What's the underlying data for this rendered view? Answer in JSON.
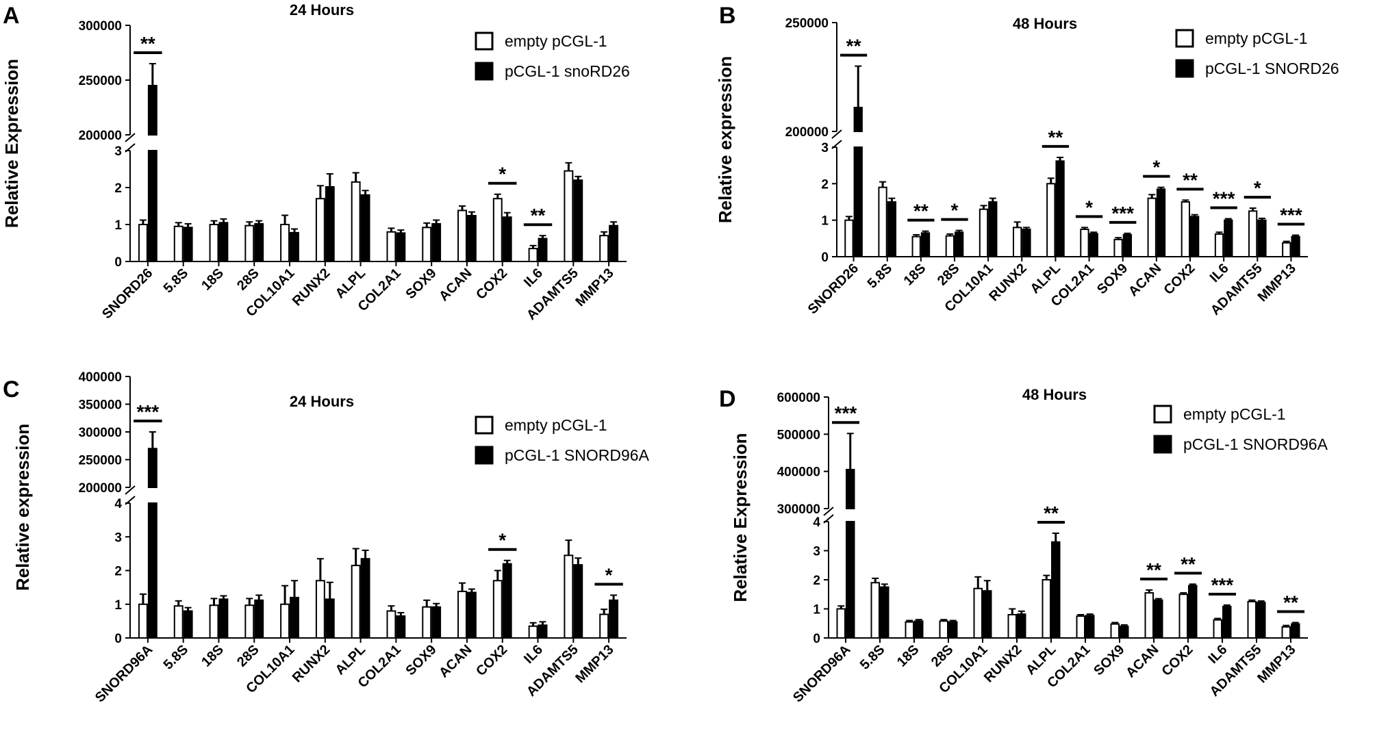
{
  "chart_data": [
    {
      "panel": "A",
      "type": "bar",
      "title": "24 Hours",
      "ylabel": "Relative Expression",
      "categories": [
        "SNORD26",
        "5.8S",
        "18S",
        "28S",
        "COL10A1",
        "RUNX2",
        "ALPL",
        "COL2A1",
        "SOX9",
        "ACAN",
        "COX2",
        "IL6",
        "ADAMTS5",
        "MMP13"
      ],
      "series": [
        {
          "name": "empty pCGL-1",
          "style": "open",
          "values": [
            1.0,
            0.95,
            1.0,
            0.97,
            1.0,
            1.7,
            2.15,
            0.8,
            0.92,
            1.38,
            1.7,
            0.35,
            2.45,
            0.7
          ],
          "errors": [
            0.12,
            0.1,
            0.1,
            0.1,
            0.25,
            0.35,
            0.25,
            0.1,
            0.12,
            0.12,
            0.12,
            0.08,
            0.22,
            0.1
          ]
        },
        {
          "name": "pCGL-1 snoRD26",
          "style": "filled",
          "values": [
            245000,
            0.92,
            1.05,
            1.02,
            0.78,
            2.02,
            1.8,
            0.77,
            1.02,
            1.24,
            1.2,
            0.62,
            2.2,
            0.97
          ],
          "errors": [
            20000,
            0.1,
            0.1,
            0.08,
            0.1,
            0.35,
            0.12,
            0.08,
            0.1,
            0.1,
            0.12,
            0.08,
            0.1,
            0.1
          ]
        }
      ],
      "lower_ylim": [
        0,
        3
      ],
      "lower_yticks": [
        0,
        1,
        2,
        3
      ],
      "upper_ylim": [
        200000,
        300000
      ],
      "upper_yticks": [
        200000,
        250000,
        300000
      ],
      "significance": [
        {
          "category": "SNORD26",
          "label": "**"
        },
        {
          "category": "COX2",
          "label": "*"
        },
        {
          "category": "IL6",
          "label": "**"
        }
      ],
      "legend_position": "top-right"
    },
    {
      "panel": "B",
      "type": "bar",
      "title": "48 Hours",
      "ylabel": "Relative expression",
      "categories": [
        "SNORD26",
        "5.8S",
        "18S",
        "28S",
        "COL10A1",
        "RUNX2",
        "ALPL",
        "COL2A1",
        "SOX9",
        "ACAN",
        "COX2",
        "IL6",
        "ADAMTS5",
        "MMP13"
      ],
      "series": [
        {
          "name": "empty pCGL-1",
          "style": "open",
          "values": [
            1.0,
            1.9,
            0.55,
            0.57,
            1.3,
            0.8,
            2.0,
            0.75,
            0.47,
            1.6,
            1.5,
            0.62,
            1.25,
            0.38
          ],
          "errors": [
            0.1,
            0.15,
            0.05,
            0.05,
            0.1,
            0.15,
            0.15,
            0.05,
            0.05,
            0.1,
            0.05,
            0.05,
            0.08,
            0.04
          ]
        },
        {
          "name": "pCGL-1 SNORD26",
          "style": "filled",
          "values": [
            211000,
            1.5,
            0.65,
            0.67,
            1.5,
            0.75,
            2.62,
            0.63,
            0.6,
            1.85,
            1.1,
            1.0,
            1.0,
            0.55
          ],
          "errors": [
            19000,
            0.1,
            0.05,
            0.05,
            0.1,
            0.05,
            0.1,
            0.04,
            0.04,
            0.05,
            0.05,
            0.04,
            0.05,
            0.04
          ]
        }
      ],
      "lower_ylim": [
        0,
        3
      ],
      "lower_yticks": [
        0,
        1,
        2,
        3
      ],
      "upper_ylim": [
        200000,
        250000
      ],
      "upper_yticks": [
        200000,
        250000
      ],
      "significance": [
        {
          "category": "SNORD26",
          "label": "**"
        },
        {
          "category": "18S",
          "label": "**"
        },
        {
          "category": "28S",
          "label": "*"
        },
        {
          "category": "ALPL",
          "label": "**"
        },
        {
          "category": "COL2A1",
          "label": "*"
        },
        {
          "category": "SOX9",
          "label": "***"
        },
        {
          "category": "ACAN",
          "label": "*"
        },
        {
          "category": "COX2",
          "label": "**"
        },
        {
          "category": "IL6",
          "label": "***"
        },
        {
          "category": "ADAMTS5",
          "label": "*"
        },
        {
          "category": "MMP13",
          "label": "***"
        }
      ],
      "legend_position": "top-right"
    },
    {
      "panel": "C",
      "type": "bar",
      "title": "24 Hours",
      "ylabel": "Relative expression",
      "categories": [
        "SNORD96A",
        "5.8S",
        "18S",
        "28S",
        "COL10A1",
        "RUNX2",
        "ALPL",
        "COL2A1",
        "SOX9",
        "ACAN",
        "COX2",
        "IL6",
        "ADAMTS5",
        "MMP13"
      ],
      "series": [
        {
          "name": "empty pCGL-1",
          "style": "open",
          "values": [
            1.0,
            0.95,
            0.97,
            0.97,
            1.0,
            1.7,
            2.15,
            0.8,
            0.92,
            1.38,
            1.7,
            0.35,
            2.45,
            0.7
          ],
          "errors": [
            0.3,
            0.15,
            0.2,
            0.2,
            0.55,
            0.65,
            0.5,
            0.15,
            0.2,
            0.25,
            0.3,
            0.1,
            0.45,
            0.15
          ]
        },
        {
          "name": "pCGL-1 SNORD96A",
          "style": "filled",
          "values": [
            270000,
            0.8,
            1.15,
            1.12,
            1.2,
            1.15,
            2.35,
            0.65,
            0.92,
            1.35,
            2.2,
            0.38,
            2.17,
            1.12
          ],
          "errors": [
            30000,
            0.1,
            0.1,
            0.15,
            0.5,
            0.5,
            0.25,
            0.1,
            0.1,
            0.1,
            0.1,
            0.1,
            0.2,
            0.15
          ]
        }
      ],
      "lower_ylim": [
        0,
        4
      ],
      "lower_yticks": [
        0,
        1,
        2,
        3,
        4
      ],
      "upper_ylim": [
        200000,
        400000
      ],
      "upper_yticks": [
        200000,
        250000,
        300000,
        350000,
        400000
      ],
      "significance": [
        {
          "category": "SNORD96A",
          "label": "***"
        },
        {
          "category": "COX2",
          "label": "*"
        },
        {
          "category": "MMP13",
          "label": "*"
        }
      ],
      "legend_position": "top-right"
    },
    {
      "panel": "D",
      "type": "bar",
      "title": "48 Hours",
      "ylabel": "Relative Expression",
      "categories": [
        "SNORD96A",
        "5.8S",
        "18S",
        "28S",
        "COL10A1",
        "RUNX2",
        "ALPL",
        "COL2A1",
        "SOX9",
        "ACAN",
        "COX2",
        "IL6",
        "ADAMTS5",
        "MMP13"
      ],
      "series": [
        {
          "name": "empty pCGL-1",
          "style": "open",
          "values": [
            1.0,
            1.9,
            0.55,
            0.58,
            1.7,
            0.8,
            2.0,
            0.75,
            0.48,
            1.55,
            1.5,
            0.62,
            1.25,
            0.38
          ],
          "errors": [
            0.1,
            0.15,
            0.05,
            0.05,
            0.4,
            0.2,
            0.15,
            0.05,
            0.05,
            0.1,
            0.05,
            0.05,
            0.05,
            0.05
          ]
        },
        {
          "name": "pCGL-1 SNORD96A",
          "style": "filled",
          "values": [
            405000,
            1.75,
            0.58,
            0.55,
            1.62,
            0.82,
            3.3,
            0.77,
            0.4,
            1.3,
            1.8,
            1.08,
            1.22,
            0.48
          ],
          "errors": [
            97000,
            0.1,
            0.05,
            0.05,
            0.35,
            0.1,
            0.3,
            0.05,
            0.05,
            0.05,
            0.05,
            0.05,
            0.05,
            0.05
          ]
        }
      ],
      "lower_ylim": [
        0,
        4
      ],
      "lower_yticks": [
        0,
        1,
        2,
        3,
        4
      ],
      "upper_ylim": [
        300000,
        600000
      ],
      "upper_yticks": [
        300000,
        400000,
        500000,
        600000
      ],
      "significance": [
        {
          "category": "SNORD96A",
          "label": "***"
        },
        {
          "category": "ALPL",
          "label": "**"
        },
        {
          "category": "ACAN",
          "label": "**"
        },
        {
          "category": "COX2",
          "label": "**"
        },
        {
          "category": "IL6",
          "label": "***"
        },
        {
          "category": "MMP13",
          "label": "**"
        }
      ],
      "legend_position": "top-right"
    }
  ]
}
